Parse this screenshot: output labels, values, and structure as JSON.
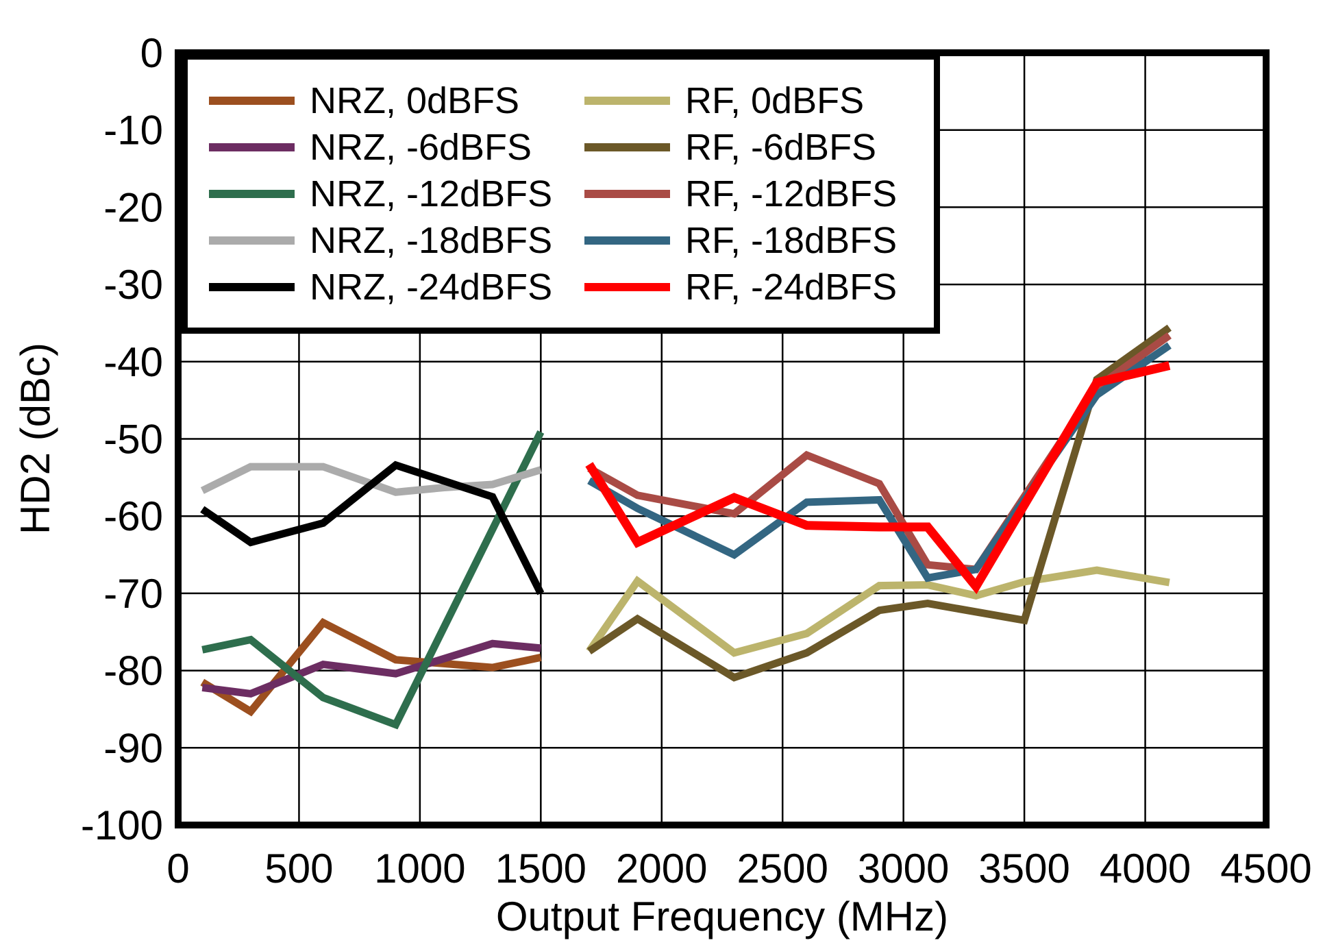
{
  "figure": {
    "background": "#ffffff",
    "frame_color": "#000000",
    "grid_color": "#000000"
  },
  "chart_data": {
    "type": "line",
    "title": "",
    "xlabel": "Output Frequency (MHz)",
    "ylabel": "HD2 (dBc)",
    "xlim": [
      0,
      4500
    ],
    "ylim": [
      -100,
      0
    ],
    "xticks": [
      0,
      500,
      1000,
      1500,
      2000,
      2500,
      3000,
      3500,
      4000,
      4500
    ],
    "yticks": [
      0,
      -10,
      -20,
      -30,
      -40,
      -50,
      -60,
      -70,
      -80,
      -90,
      -100
    ],
    "grid": true,
    "legend_position": "top-left",
    "series": [
      {
        "name": "nrz-0dbfs",
        "label": "NRZ, 0dBFS",
        "color": "#9C4F1F",
        "lw": 11,
        "x": [
          100,
          300,
          600,
          900,
          1300,
          1500
        ],
        "y": [
          -81.5,
          -85.3,
          -73.8,
          -78.6,
          -79.6,
          -78.3
        ]
      },
      {
        "name": "nrz-6dbfs",
        "label": "NRZ, -6dBFS",
        "color": "#6C2D62",
        "lw": 11,
        "x": [
          100,
          300,
          600,
          900,
          1300,
          1500
        ],
        "y": [
          -82.2,
          -83.0,
          -79.2,
          -80.4,
          -76.5,
          -77.1
        ]
      },
      {
        "name": "nrz-12dbfs",
        "label": "NRZ, -12dBFS",
        "color": "#2E6E4D",
        "lw": 11,
        "x": [
          100,
          300,
          600,
          900,
          1500
        ],
        "y": [
          -77.3,
          -76.0,
          -83.5,
          -87.0,
          -49.1
        ]
      },
      {
        "name": "nrz-18dbfs",
        "label": "NRZ, -18dBFS",
        "color": "#ABABAB",
        "lw": 11,
        "x": [
          100,
          300,
          600,
          900,
          1100,
          1300,
          1500
        ],
        "y": [
          -56.7,
          -53.6,
          -53.6,
          -56.9,
          -56.3,
          -55.9,
          -54.0
        ]
      },
      {
        "name": "nrz-24dbfs",
        "label": "NRZ, -24dBFS",
        "color": "#000000",
        "lw": 11,
        "x": [
          100,
          300,
          600,
          900,
          1300,
          1500
        ],
        "y": [
          -59.1,
          -63.4,
          -60.9,
          -53.4,
          -57.5,
          -70.0
        ]
      },
      {
        "name": "rf-0dbfs",
        "label": "RF, 0dBFS",
        "color": "#BCB46C",
        "lw": 11,
        "x": [
          1700,
          1900,
          2300,
          2600,
          2900,
          3100,
          3300,
          3500,
          3800,
          4100
        ],
        "y": [
          -77.5,
          -68.4,
          -77.7,
          -75.2,
          -69.0,
          -68.9,
          -70.3,
          -68.5,
          -67.0,
          -68.6
        ]
      },
      {
        "name": "rf-6dbfs",
        "label": "RF, -6dBFS",
        "color": "#6B5828",
        "lw": 11,
        "x": [
          1700,
          1900,
          2300,
          2600,
          2900,
          3100,
          3500,
          3800,
          4100
        ],
        "y": [
          -77.5,
          -73.3,
          -80.9,
          -77.7,
          -72.2,
          -71.3,
          -73.5,
          -42.3,
          -35.6
        ]
      },
      {
        "name": "rf-12dbfs",
        "label": "RF, -12dBFS",
        "color": "#A94B45",
        "lw": 11,
        "x": [
          1700,
          1900,
          2300,
          2600,
          2900,
          3100,
          3300,
          3800,
          4100
        ],
        "y": [
          -53.8,
          -57.3,
          -59.7,
          -52.1,
          -55.8,
          -66.3,
          -66.9,
          -43.3,
          -36.6
        ]
      },
      {
        "name": "rf-18dbfs",
        "label": "RF, -18dBFS",
        "color": "#336682",
        "lw": 11,
        "x": [
          1700,
          1900,
          2300,
          2600,
          2900,
          3100,
          3300,
          3800,
          4100
        ],
        "y": [
          -55.4,
          -59.0,
          -65.0,
          -58.2,
          -57.9,
          -68.0,
          -66.9,
          -44.3,
          -37.9
        ]
      },
      {
        "name": "rf-24dbfs",
        "label": "RF, -24dBFS",
        "color": "#FF0000",
        "lw": 13,
        "x": [
          1700,
          1900,
          2300,
          2600,
          2900,
          3100,
          3300,
          3800,
          4100
        ],
        "y": [
          -53.3,
          -63.4,
          -57.6,
          -61.2,
          -61.4,
          -61.4,
          -69.1,
          -42.7,
          -40.5
        ]
      }
    ]
  }
}
